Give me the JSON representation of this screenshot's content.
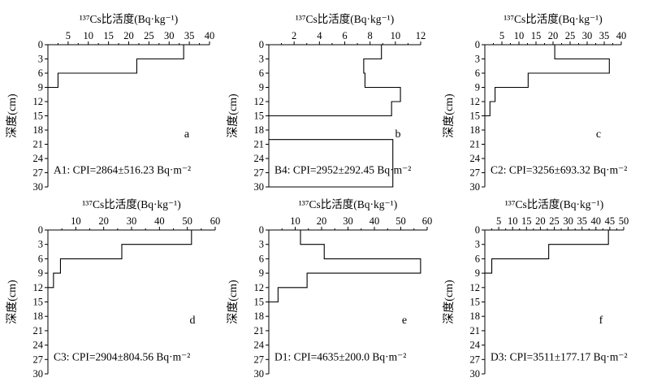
{
  "chart_data": [
    {
      "panel": "a",
      "type": "line",
      "x_axis_label": "¹³⁷Cs比活度(Bq·kg⁻¹)",
      "y_axis_label": "深度(cm)",
      "xlim": [
        0,
        40
      ],
      "xticks": [
        5,
        10,
        15,
        20,
        25,
        30,
        35,
        40
      ],
      "ylim": [
        0,
        30
      ],
      "yticks": [
        0,
        3,
        6,
        9,
        12,
        15,
        18,
        21,
        24,
        27,
        30
      ],
      "y_inverted": true,
      "profile": [
        {
          "top": 0,
          "bottom": 3,
          "value": 33.6
        },
        {
          "top": 3,
          "bottom": 6,
          "value": 22.0
        },
        {
          "top": 6,
          "bottom": 9,
          "value": 2.5
        }
      ],
      "annotation": "A1: CPI=2864±516.23 Bq·m⁻²"
    },
    {
      "panel": "b",
      "type": "line",
      "x_axis_label": "¹³⁷Cs比活度(Bq·kg⁻¹)",
      "y_axis_label": "深度(cm)",
      "xlim": [
        0,
        12
      ],
      "xticks": [
        2,
        4,
        6,
        8,
        10,
        12
      ],
      "ylim": [
        0,
        30
      ],
      "yticks": [
        0,
        3,
        6,
        9,
        12,
        15,
        18,
        21,
        24,
        27,
        30
      ],
      "y_inverted": true,
      "profile": [
        {
          "top": 0,
          "bottom": 3,
          "value": 8.9
        },
        {
          "top": 3,
          "bottom": 6,
          "value": 7.5
        },
        {
          "top": 6,
          "bottom": 9,
          "value": 7.6
        },
        {
          "top": 9,
          "bottom": 12,
          "value": 10.4
        },
        {
          "top": 12,
          "bottom": 15,
          "value": 9.7
        },
        {
          "top": 20,
          "bottom": 30,
          "value": 9.8
        }
      ],
      "annotation": "B4: CPI=2952±292.45 Bq·m⁻²"
    },
    {
      "panel": "c",
      "type": "line",
      "x_axis_label": "¹³⁷Cs比活度(Bq·kg⁻¹)",
      "y_axis_label": "深度(cm)",
      "xlim": [
        0,
        40
      ],
      "xticks": [
        5,
        10,
        15,
        20,
        25,
        30,
        35,
        40
      ],
      "ylim": [
        0,
        30
      ],
      "yticks": [
        0,
        3,
        6,
        9,
        12,
        15,
        18,
        21,
        24,
        27,
        30
      ],
      "y_inverted": true,
      "profile": [
        {
          "top": 0,
          "bottom": 3,
          "value": 20.5
        },
        {
          "top": 3,
          "bottom": 6,
          "value": 36.5
        },
        {
          "top": 6,
          "bottom": 9,
          "value": 12.7
        },
        {
          "top": 9,
          "bottom": 12,
          "value": 3.0
        },
        {
          "top": 12,
          "bottom": 15,
          "value": 1.5
        }
      ],
      "annotation": "C2: CPI=3256±693.32 Bq·m⁻²"
    },
    {
      "panel": "d",
      "type": "line",
      "x_axis_label": "¹³⁷Cs比活度(Bq·kg⁻¹)",
      "y_axis_label": "深度(cm)",
      "xlim": [
        0,
        60
      ],
      "xticks": [
        10,
        20,
        30,
        40,
        50,
        60
      ],
      "ylim": [
        0,
        30
      ],
      "yticks": [
        0,
        3,
        6,
        9,
        12,
        15,
        18,
        21,
        24,
        27,
        30
      ],
      "y_inverted": true,
      "profile": [
        {
          "top": 0,
          "bottom": 3,
          "value": 51.5
        },
        {
          "top": 3,
          "bottom": 6,
          "value": 26.5
        },
        {
          "top": 6,
          "bottom": 9,
          "value": 4.5
        },
        {
          "top": 9,
          "bottom": 12,
          "value": 2.0
        }
      ],
      "annotation": "C3: CPI=2904±804.56 Bq·m⁻²"
    },
    {
      "panel": "e",
      "type": "line",
      "x_axis_label": "¹³⁷Cs比活度(Bq·kg⁻¹)",
      "y_axis_label": "深度(cm)",
      "xlim": [
        0,
        60
      ],
      "xticks": [
        10,
        20,
        30,
        40,
        50,
        60
      ],
      "ylim": [
        0,
        30
      ],
      "yticks": [
        0,
        3,
        6,
        9,
        12,
        15,
        18,
        21,
        24,
        27,
        30
      ],
      "y_inverted": true,
      "profile": [
        {
          "top": 0,
          "bottom": 3,
          "value": 12.0
        },
        {
          "top": 3,
          "bottom": 6,
          "value": 21.0
        },
        {
          "top": 6,
          "bottom": 9,
          "value": 57.5
        },
        {
          "top": 9,
          "bottom": 12,
          "value": 14.5
        },
        {
          "top": 12,
          "bottom": 15,
          "value": 3.5
        }
      ],
      "annotation": "D1: CPI=4635±200.0 Bq·m⁻²"
    },
    {
      "panel": "f",
      "type": "line",
      "x_axis_label": "¹³⁷Cs比活度(Bq·kg⁻¹)",
      "y_axis_label": "深度(cm)",
      "xlim": [
        0,
        50
      ],
      "xticks": [
        5,
        10,
        15,
        20,
        25,
        30,
        35,
        40,
        45,
        50
      ],
      "ylim": [
        0,
        30
      ],
      "yticks": [
        0,
        3,
        6,
        9,
        12,
        15,
        18,
        21,
        24,
        27,
        30
      ],
      "y_inverted": true,
      "profile": [
        {
          "top": 0,
          "bottom": 3,
          "value": 44.5
        },
        {
          "top": 3,
          "bottom": 6,
          "value": 23.0
        },
        {
          "top": 6,
          "bottom": 9,
          "value": 2.5
        }
      ],
      "annotation": "D3: CPI=3511±177.17 Bq·m⁻²"
    }
  ]
}
